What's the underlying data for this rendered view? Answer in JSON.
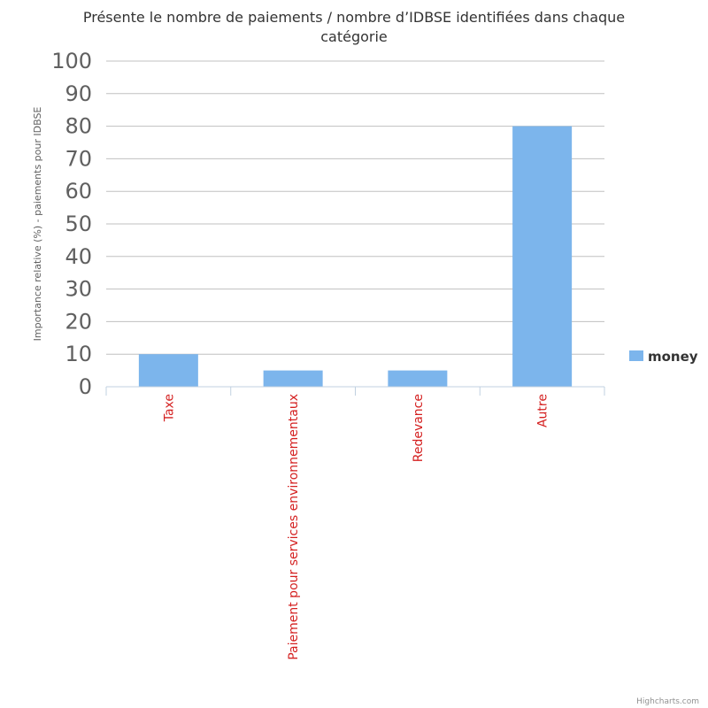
{
  "chart_data": {
    "type": "bar",
    "title": "Présente le nombre de paiements / nombre d’IDBSE identifiées dans chaque catégorie",
    "title_lines": [
      "Présente le nombre de paiements / nombre d’IDBSE identifiées dans chaque",
      "catégorie"
    ],
    "ylabel": "Importance relative (%) - paiements pour IDBSE",
    "xlabel": "",
    "categories": [
      "Taxe",
      "Paiement pour services environnementaux",
      "Redevance",
      "Autre"
    ],
    "series": [
      {
        "name": "money",
        "values": [
          10,
          5,
          5,
          80
        ],
        "color": "#7cb5ec"
      }
    ],
    "ylim": [
      0,
      100
    ],
    "yticks": [
      "0",
      "10",
      "20",
      "30",
      "40",
      "50",
      "60",
      "70",
      "80",
      "90",
      "100"
    ],
    "grid": true,
    "legend_position": "right",
    "category_label_color": "#d42020"
  },
  "credits": "Highcharts.com"
}
